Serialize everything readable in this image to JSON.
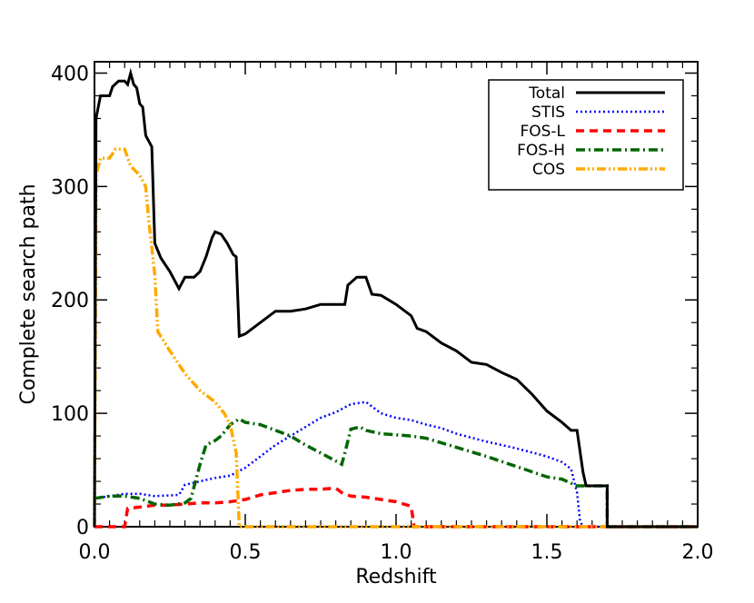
{
  "chart_data": {
    "type": "line",
    "xlabel": "Redshift",
    "ylabel": "Complete search path",
    "xlim": [
      0.0,
      2.0
    ],
    "ylim": [
      0,
      410
    ],
    "x_ticks": [
      "0.0",
      "0.5",
      "1.0",
      "1.5",
      "2.0"
    ],
    "y_ticks": [
      "0",
      "100",
      "200",
      "300",
      "400"
    ],
    "legend_position": "top-right",
    "series": [
      {
        "name": "Total",
        "color": "#000000",
        "dash": "solid",
        "points": [
          [
            0.0,
            0
          ],
          [
            0.005,
            360
          ],
          [
            0.02,
            380
          ],
          [
            0.05,
            380
          ],
          [
            0.06,
            388
          ],
          [
            0.08,
            393
          ],
          [
            0.1,
            393
          ],
          [
            0.11,
            390
          ],
          [
            0.12,
            400
          ],
          [
            0.13,
            390
          ],
          [
            0.14,
            387
          ],
          [
            0.15,
            373
          ],
          [
            0.16,
            370
          ],
          [
            0.17,
            345
          ],
          [
            0.19,
            335
          ],
          [
            0.2,
            250
          ],
          [
            0.22,
            237
          ],
          [
            0.25,
            225
          ],
          [
            0.28,
            210
          ],
          [
            0.3,
            220
          ],
          [
            0.33,
            220
          ],
          [
            0.35,
            225
          ],
          [
            0.37,
            238
          ],
          [
            0.39,
            255
          ],
          [
            0.4,
            260
          ],
          [
            0.42,
            258
          ],
          [
            0.44,
            250
          ],
          [
            0.46,
            240
          ],
          [
            0.47,
            238
          ],
          [
            0.48,
            168
          ],
          [
            0.5,
            170
          ],
          [
            0.55,
            180
          ],
          [
            0.6,
            190
          ],
          [
            0.65,
            190
          ],
          [
            0.7,
            192
          ],
          [
            0.75,
            196
          ],
          [
            0.8,
            196
          ],
          [
            0.83,
            196
          ],
          [
            0.84,
            213
          ],
          [
            0.87,
            220
          ],
          [
            0.9,
            220
          ],
          [
            0.92,
            205
          ],
          [
            0.95,
            204
          ],
          [
            1.0,
            196
          ],
          [
            1.05,
            186
          ],
          [
            1.07,
            175
          ],
          [
            1.1,
            172
          ],
          [
            1.15,
            162
          ],
          [
            1.2,
            155
          ],
          [
            1.25,
            145
          ],
          [
            1.3,
            143
          ],
          [
            1.35,
            136
          ],
          [
            1.4,
            130
          ],
          [
            1.45,
            117
          ],
          [
            1.5,
            102
          ],
          [
            1.55,
            92
          ],
          [
            1.58,
            85
          ],
          [
            1.6,
            85
          ],
          [
            1.62,
            48
          ],
          [
            1.63,
            36
          ],
          [
            1.7,
            36
          ],
          [
            1.7,
            0
          ],
          [
            2.0,
            0
          ]
        ]
      },
      {
        "name": "STIS",
        "color": "#0000ff",
        "dash": "dotted",
        "points": [
          [
            0.0,
            25
          ],
          [
            0.05,
            27
          ],
          [
            0.1,
            29
          ],
          [
            0.15,
            29
          ],
          [
            0.2,
            27
          ],
          [
            0.28,
            28
          ],
          [
            0.3,
            37
          ],
          [
            0.35,
            40
          ],
          [
            0.4,
            43
          ],
          [
            0.45,
            45
          ],
          [
            0.5,
            52
          ],
          [
            0.55,
            62
          ],
          [
            0.6,
            72
          ],
          [
            0.65,
            80
          ],
          [
            0.7,
            88
          ],
          [
            0.75,
            96
          ],
          [
            0.8,
            101
          ],
          [
            0.85,
            108
          ],
          [
            0.9,
            110
          ],
          [
            0.95,
            100
          ],
          [
            1.0,
            96
          ],
          [
            1.05,
            94
          ],
          [
            1.1,
            90
          ],
          [
            1.15,
            87
          ],
          [
            1.2,
            82
          ],
          [
            1.3,
            75
          ],
          [
            1.4,
            69
          ],
          [
            1.5,
            62
          ],
          [
            1.55,
            57
          ],
          [
            1.58,
            51
          ],
          [
            1.6,
            30
          ],
          [
            1.61,
            5
          ],
          [
            1.62,
            0
          ],
          [
            2.0,
            0
          ]
        ]
      },
      {
        "name": "FOS-L",
        "color": "#ff0000",
        "dash": "dashed",
        "points": [
          [
            0.0,
            0
          ],
          [
            0.1,
            0
          ],
          [
            0.11,
            16
          ],
          [
            0.2,
            19
          ],
          [
            0.25,
            19
          ],
          [
            0.3,
            20
          ],
          [
            0.35,
            21
          ],
          [
            0.4,
            21
          ],
          [
            0.45,
            22
          ],
          [
            0.5,
            24
          ],
          [
            0.55,
            28
          ],
          [
            0.6,
            30
          ],
          [
            0.65,
            32
          ],
          [
            0.7,
            33
          ],
          [
            0.75,
            33
          ],
          [
            0.8,
            34
          ],
          [
            0.82,
            30
          ],
          [
            0.85,
            27
          ],
          [
            0.9,
            26
          ],
          [
            0.95,
            24
          ],
          [
            1.0,
            22
          ],
          [
            1.05,
            18
          ],
          [
            1.06,
            0
          ],
          [
            2.0,
            0
          ]
        ]
      },
      {
        "name": "FOS-H",
        "color": "#006600",
        "dash": "dashdot",
        "points": [
          [
            0.0,
            25
          ],
          [
            0.05,
            27
          ],
          [
            0.1,
            27
          ],
          [
            0.15,
            25
          ],
          [
            0.2,
            20
          ],
          [
            0.25,
            19
          ],
          [
            0.3,
            21
          ],
          [
            0.32,
            25
          ],
          [
            0.35,
            55
          ],
          [
            0.37,
            72
          ],
          [
            0.4,
            76
          ],
          [
            0.42,
            80
          ],
          [
            0.45,
            90
          ],
          [
            0.48,
            95
          ],
          [
            0.5,
            92
          ],
          [
            0.55,
            90
          ],
          [
            0.6,
            85
          ],
          [
            0.65,
            80
          ],
          [
            0.7,
            72
          ],
          [
            0.75,
            65
          ],
          [
            0.8,
            58
          ],
          [
            0.82,
            55
          ],
          [
            0.83,
            65
          ],
          [
            0.85,
            86
          ],
          [
            0.88,
            88
          ],
          [
            0.9,
            85
          ],
          [
            0.95,
            82
          ],
          [
            1.0,
            81
          ],
          [
            1.05,
            80
          ],
          [
            1.1,
            78
          ],
          [
            1.2,
            70
          ],
          [
            1.3,
            62
          ],
          [
            1.4,
            53
          ],
          [
            1.5,
            44
          ],
          [
            1.55,
            42
          ],
          [
            1.6,
            36
          ],
          [
            1.7,
            36
          ],
          [
            1.7,
            0
          ],
          [
            2.0,
            0
          ]
        ]
      },
      {
        "name": "COS",
        "color": "#ffaa00",
        "dash": "dashdotdot",
        "points": [
          [
            0.0,
            0
          ],
          [
            0.005,
            310
          ],
          [
            0.02,
            325
          ],
          [
            0.05,
            325
          ],
          [
            0.07,
            333
          ],
          [
            0.1,
            333
          ],
          [
            0.12,
            318
          ],
          [
            0.15,
            310
          ],
          [
            0.17,
            300
          ],
          [
            0.18,
            270
          ],
          [
            0.2,
            222
          ],
          [
            0.21,
            172
          ],
          [
            0.25,
            155
          ],
          [
            0.3,
            135
          ],
          [
            0.35,
            120
          ],
          [
            0.4,
            110
          ],
          [
            0.43,
            100
          ],
          [
            0.45,
            90
          ],
          [
            0.47,
            65
          ],
          [
            0.48,
            0
          ],
          [
            2.0,
            0
          ]
        ]
      }
    ]
  }
}
